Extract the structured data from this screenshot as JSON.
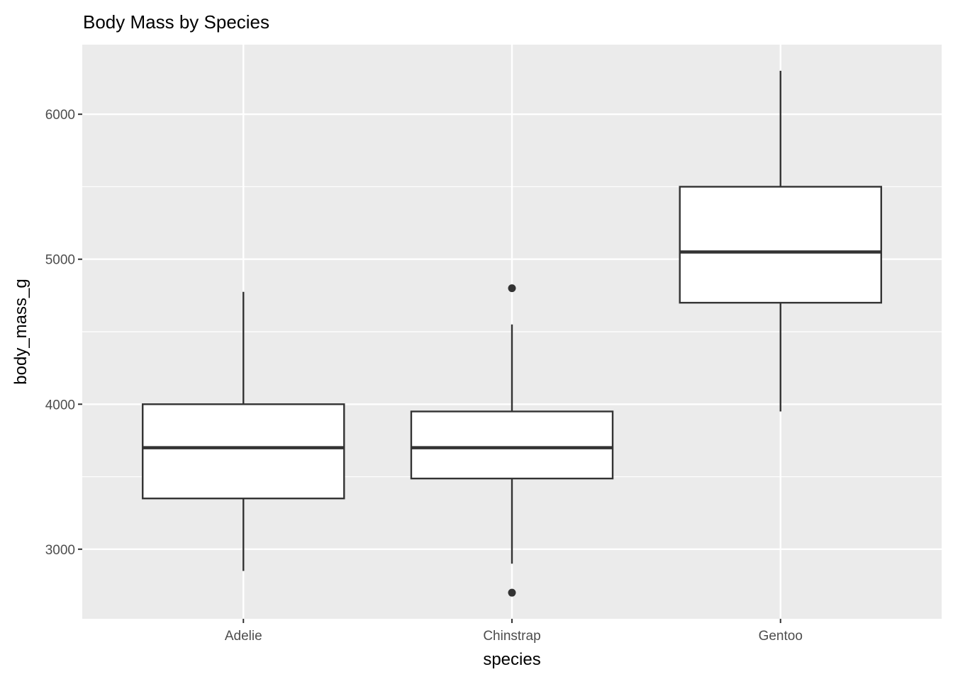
{
  "chart_data": {
    "type": "boxplot",
    "title": "Body Mass by Species",
    "xlabel": "species",
    "ylabel": "body_mass_g",
    "ylim": [
      2520,
      6480
    ],
    "yticks": [
      3000,
      4000,
      5000,
      6000
    ],
    "yminor": [
      3500,
      4500,
      5500
    ],
    "grid": true,
    "categories": [
      "Adelie",
      "Chinstrap",
      "Gentoo"
    ],
    "boxes": [
      {
        "name": "Adelie",
        "lower_whisker": 2850,
        "q1": 3350,
        "median": 3700,
        "q3": 4000,
        "upper_whisker": 4775,
        "outliers": []
      },
      {
        "name": "Chinstrap",
        "lower_whisker": 2900,
        "q1": 3487.5,
        "median": 3700,
        "q3": 3950,
        "upper_whisker": 4550,
        "outliers": [
          4800,
          2700
        ]
      },
      {
        "name": "Gentoo",
        "lower_whisker": 3950,
        "q1": 4700,
        "median": 5050,
        "q3": 5500,
        "upper_whisker": 6300,
        "outliers": []
      }
    ],
    "colors": {
      "panel": "#EBEBEB",
      "grid": "#FFFFFF",
      "box_line": "#333333",
      "box_fill": "#FFFFFF"
    }
  }
}
